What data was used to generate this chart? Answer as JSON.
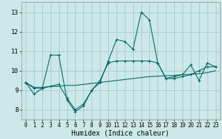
{
  "xlabel": "Humidex (Indice chaleur)",
  "background_color": "#cce8e8",
  "grid_color": "#aacccc",
  "line_color": "#006666",
  "xlim": [
    -0.5,
    23.5
  ],
  "ylim": [
    7.5,
    13.5
  ],
  "yticks": [
    8,
    9,
    10,
    11,
    12,
    13
  ],
  "xticks": [
    0,
    1,
    2,
    3,
    4,
    5,
    6,
    7,
    8,
    9,
    10,
    11,
    12,
    13,
    14,
    15,
    16,
    17,
    18,
    19,
    20,
    21,
    22,
    23
  ],
  "series": [
    [
      9.4,
      8.8,
      9.1,
      10.8,
      10.8,
      8.5,
      7.9,
      8.2,
      9.0,
      9.4,
      10.5,
      11.6,
      11.5,
      11.1,
      13.0,
      12.6,
      10.4,
      9.6,
      9.7,
      9.8,
      10.3,
      9.5,
      10.4,
      10.2
    ],
    [
      9.4,
      9.15,
      9.15,
      9.2,
      9.2,
      9.25,
      9.25,
      9.3,
      9.35,
      9.4,
      9.45,
      9.5,
      9.55,
      9.6,
      9.65,
      9.7,
      9.72,
      9.74,
      9.76,
      9.8,
      9.82,
      9.85,
      9.9,
      10.0
    ],
    [
      9.4,
      9.1,
      9.1,
      9.2,
      9.3,
      8.6,
      8.0,
      8.3,
      9.0,
      9.5,
      10.4,
      10.5,
      10.5,
      10.5,
      10.5,
      10.5,
      10.4,
      9.6,
      9.6,
      9.7,
      9.8,
      10.0,
      10.2,
      10.2
    ]
  ]
}
